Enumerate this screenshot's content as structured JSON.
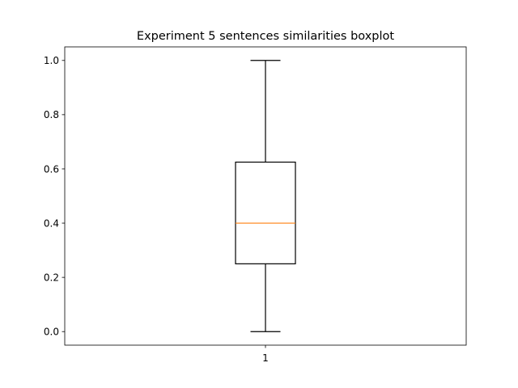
{
  "chart_data": {
    "type": "box",
    "title": "Experiment 5 sentences similarities boxplot",
    "xlabel": "",
    "ylabel": "",
    "categories": [
      "1"
    ],
    "boxes": [
      {
        "label": "1",
        "whisker_low": 0.0,
        "q1": 0.25,
        "median": 0.4,
        "q3": 0.625,
        "whisker_high": 1.0
      }
    ],
    "ylim": [
      -0.05,
      1.05
    ],
    "yticks": [
      0.0,
      0.2,
      0.4,
      0.6,
      0.8,
      1.0
    ],
    "ytick_labels": [
      "0.0",
      "0.2",
      "0.4",
      "0.6",
      "0.8",
      "1.0"
    ],
    "grid": false,
    "colors": {
      "box": "#000000",
      "median": "#ff7f0e"
    }
  }
}
